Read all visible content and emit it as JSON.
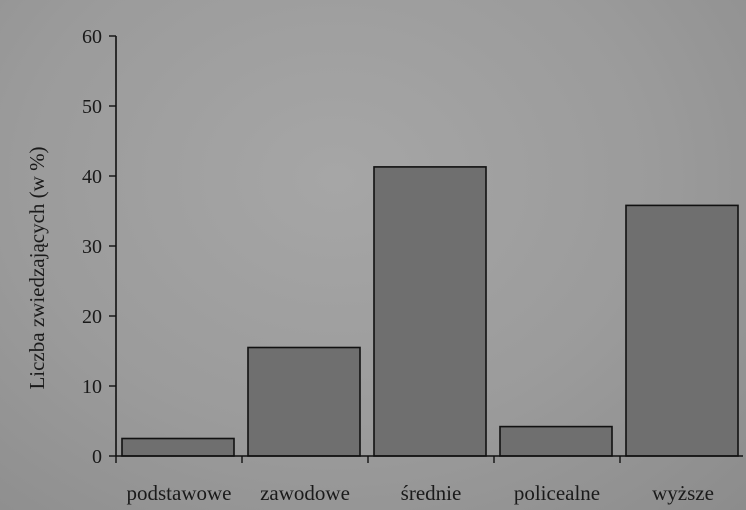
{
  "chart_data": {
    "type": "bar",
    "title": "",
    "xlabel": "",
    "ylabel": "Liczba zwiedzających (w %)",
    "categories": [
      "podstawowe",
      "zawodowe",
      "średnie",
      "policealne",
      "wyższe"
    ],
    "values": [
      2.5,
      15.5,
      41.3,
      4.2,
      35.8
    ],
    "ylim": [
      0,
      60
    ],
    "yticks": [
      0,
      10,
      20,
      30,
      40,
      50,
      60
    ],
    "grid": false,
    "legend": "none",
    "colors": {
      "bar_fill": "#6f6f6f",
      "bar_stroke": "#111111",
      "axis": "#111111",
      "background": "#9c9c9c"
    }
  }
}
